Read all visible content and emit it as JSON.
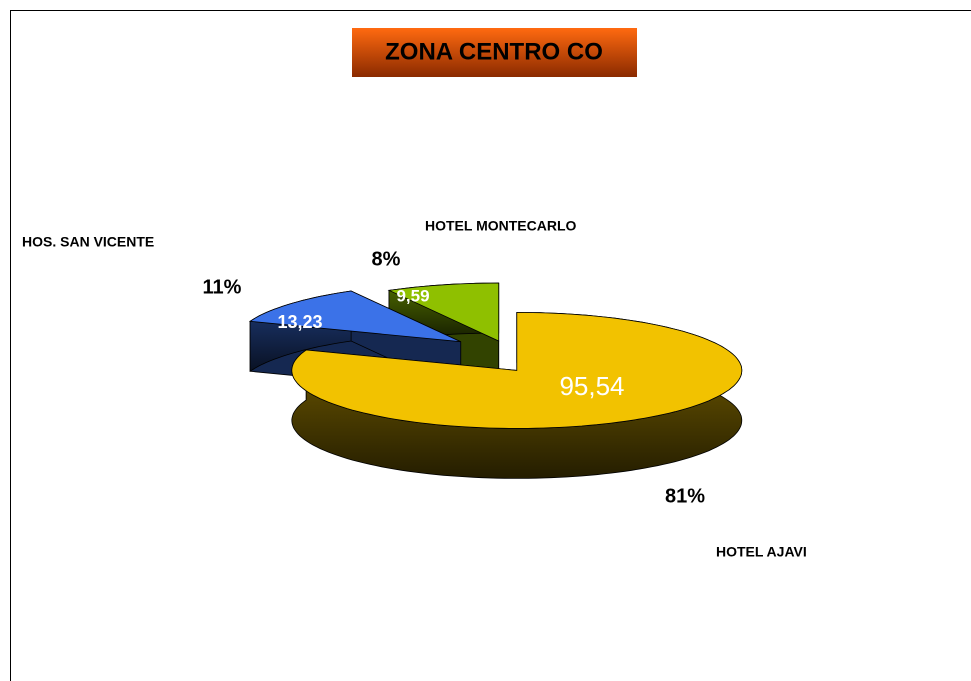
{
  "chart_data": {
    "type": "pie3d",
    "title": "ZONA CENTRO CO",
    "categories": [
      "HOTEL AJAVI",
      "HOS. SAN VICENTE",
      "HOTEL MONTECARLO"
    ],
    "values": [
      95.54,
      13.23,
      9.59
    ],
    "value_labels": [
      "95,54",
      "13,23",
      "9,59"
    ],
    "percent_labels": [
      "81%",
      "11%",
      "8%"
    ],
    "colors": [
      "#f2c200",
      "#3b72e8",
      "#8fc000"
    ]
  }
}
